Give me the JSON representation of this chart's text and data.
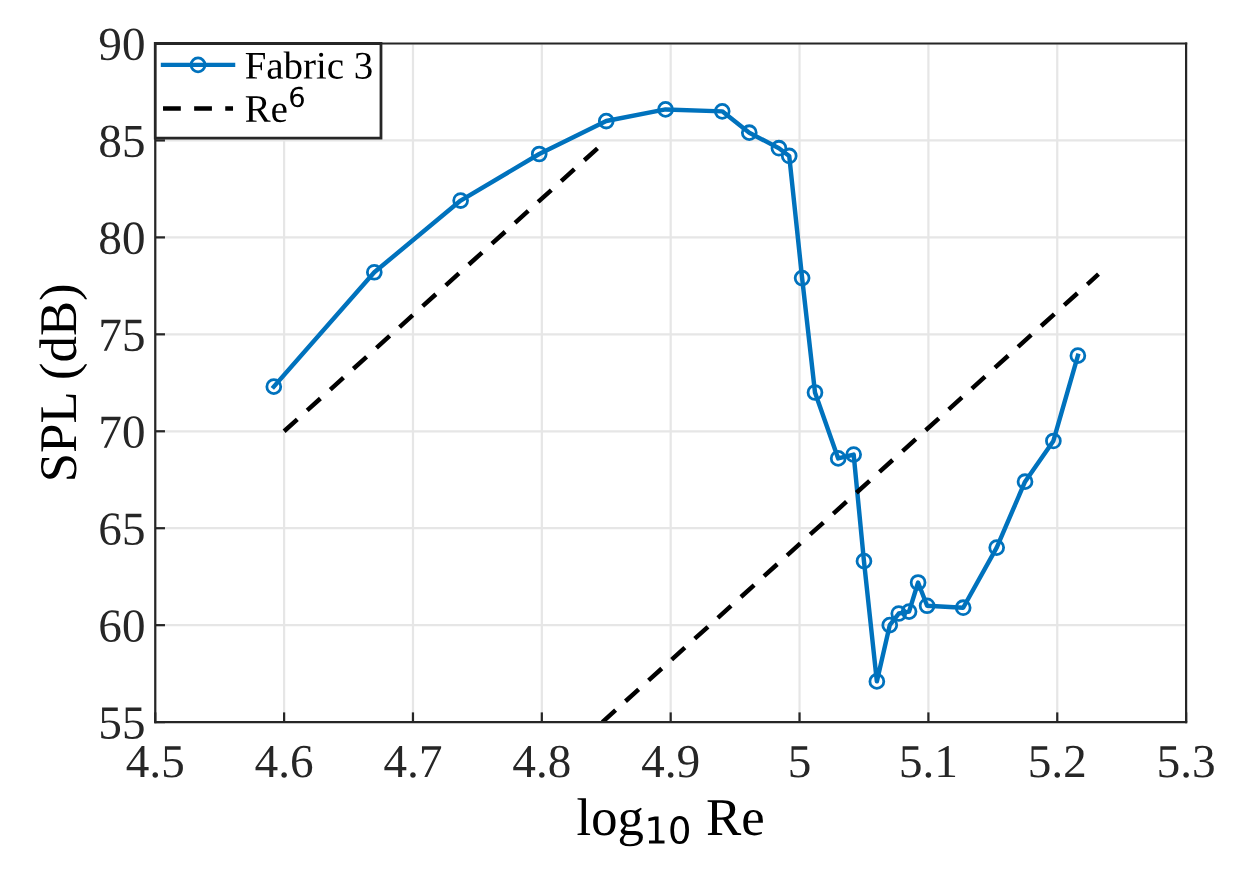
{
  "chart_data": {
    "type": "line",
    "xlabel": "log$_{10}$ Re",
    "ylabel": "SPL (dB)",
    "series": [
      {
        "name": "Fabric 3",
        "color": "#0072bd",
        "marker": "circle",
        "line_style": "solid",
        "x": [
          4.592,
          4.67,
          4.737,
          4.798,
          4.85,
          4.896,
          4.94,
          4.961,
          4.984,
          4.992,
          5.002,
          5.012,
          5.03,
          5.042,
          5.05,
          5.06,
          5.07,
          5.077,
          5.085,
          5.092,
          5.099,
          5.127,
          5.153,
          5.175,
          5.197,
          5.216
        ],
        "values": [
          72.3,
          78.2,
          81.9,
          84.3,
          86.0,
          86.6,
          86.5,
          85.4,
          84.6,
          84.2,
          77.9,
          72.0,
          68.6,
          68.8,
          63.3,
          57.1,
          60.0,
          60.6,
          60.7,
          62.2,
          61.0,
          60.9,
          64.0,
          67.4,
          69.5,
          73.9
        ]
      },
      {
        "name": "Re$^{6}$",
        "color": "#000000",
        "marker": "none",
        "line_style": "dashed",
        "x": [
          4.6,
          4.845
        ],
        "values": [
          70.0,
          84.7
        ]
      },
      {
        "color": "#000000",
        "marker": "none",
        "line_style": "dashed",
        "x": [
          4.847,
          5.232
        ],
        "values": [
          55.0,
          78.1
        ]
      }
    ],
    "xlim": [
      4.5,
      5.3
    ],
    "xticks": [
      4.5,
      4.6,
      4.7,
      4.8,
      4.9,
      5,
      5.1,
      5.2,
      5.3
    ],
    "ylim": [
      55,
      90
    ],
    "yticks": [
      55,
      60,
      65,
      70,
      75,
      80,
      85,
      90
    ],
    "grid": true,
    "legend": "top left"
  }
}
